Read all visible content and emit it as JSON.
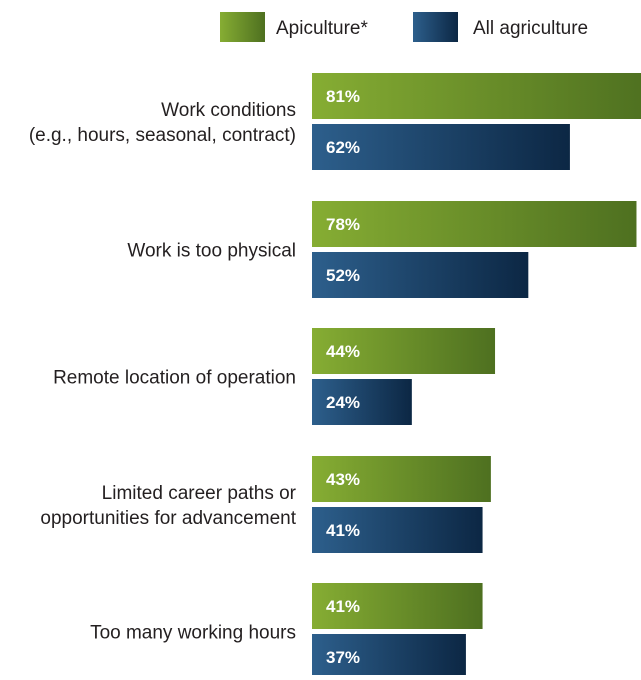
{
  "chart_data": {
    "type": "bar",
    "orientation": "horizontal",
    "legend": "top",
    "xlim": [
      0,
      100
    ],
    "grid": false,
    "categories": [
      [
        "Work conditions",
        "(e.g., hours, seasonal, contract)"
      ],
      [
        "Work is too physical"
      ],
      [
        "Remote location of operation"
      ],
      [
        "Limited career paths or",
        "opportunities for advancement"
      ],
      [
        "Too many working hours"
      ]
    ],
    "series": [
      {
        "name": "Apiculture*",
        "values": [
          81,
          78,
          44,
          43,
          41
        ],
        "labels": [
          "81%",
          "78%",
          "44%",
          "43%",
          "41%"
        ],
        "color_start": "#86ad33",
        "color_end": "#4e7020"
      },
      {
        "name": "All agriculture",
        "values": [
          62,
          52,
          24,
          41,
          37
        ],
        "labels": [
          "62%",
          "52%",
          "24%",
          "41%",
          "37%"
        ],
        "color_start": "#2d5f8c",
        "color_end": "#0c2744"
      }
    ]
  }
}
